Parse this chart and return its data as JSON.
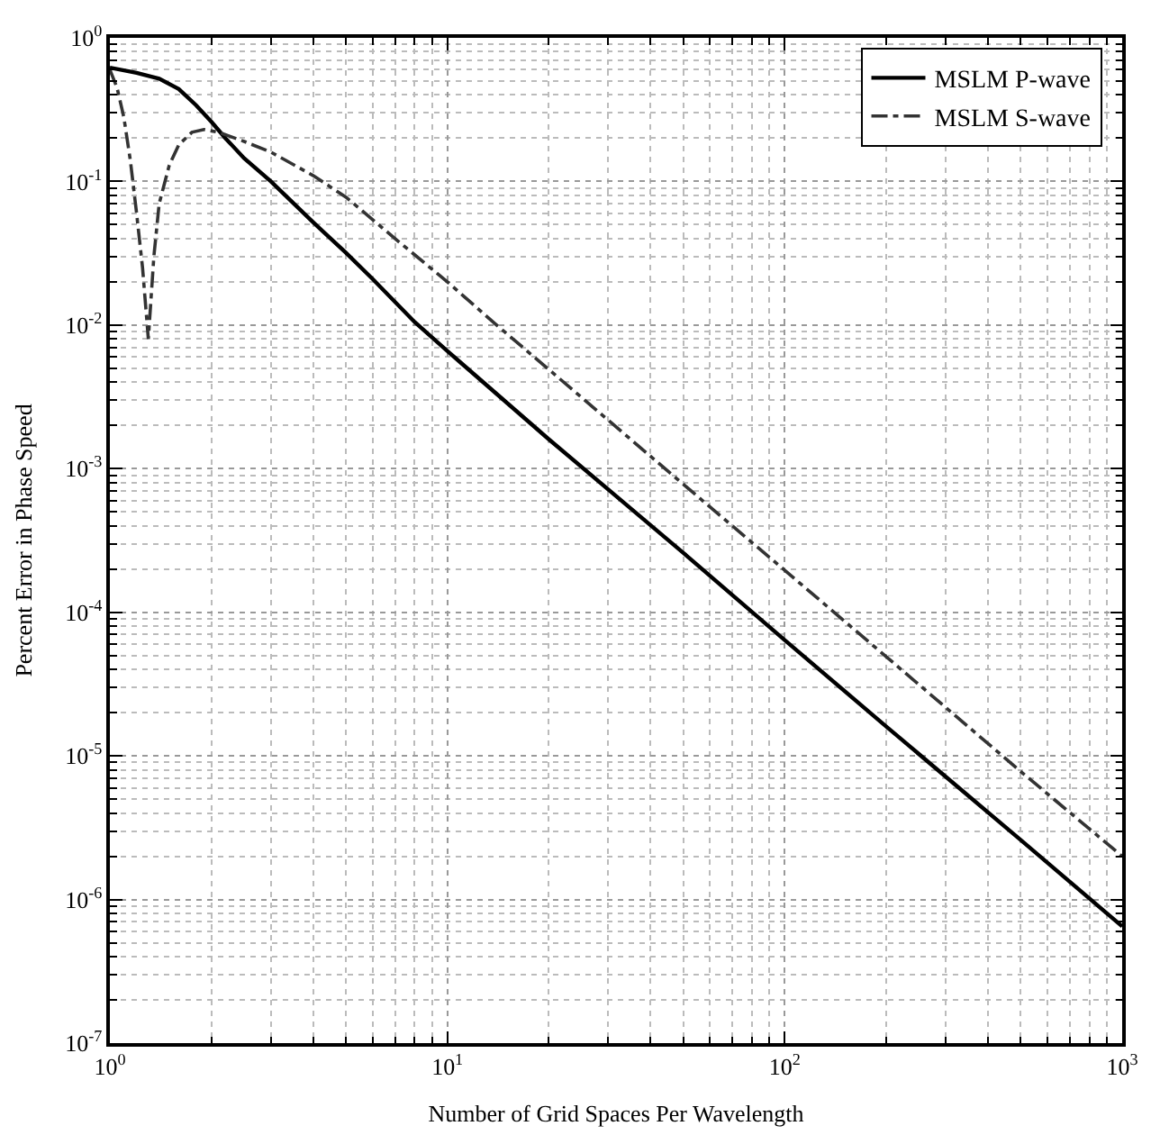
{
  "chart_data": {
    "type": "line",
    "xlabel": "Number of Grid Spaces Per Wavelength",
    "ylabel": "Percent Error in Phase Speed",
    "log": "xy",
    "grid": true,
    "legend": "top right",
    "xlim": [
      1,
      1000
    ],
    "xticks": [
      {
        "value": 1,
        "label": "10$^{0}$"
      },
      {
        "value": 10,
        "label": "10$^{1}$"
      },
      {
        "value": 100,
        "label": "10$^{2}$"
      },
      {
        "value": 1000,
        "label": "10$^{3}$"
      }
    ],
    "ylim": [
      1e-07,
      1
    ],
    "yticks": [
      {
        "value": 1e-07,
        "label": "10$^{-7}$"
      },
      {
        "value": 1e-06,
        "label": "10$^{-6}$"
      },
      {
        "value": 1e-05,
        "label": "10$^{-5}$"
      },
      {
        "value": 0.0001,
        "label": "10$^{-4}$"
      },
      {
        "value": 0.001,
        "label": "10$^{-3}$"
      },
      {
        "value": 0.01,
        "label": "10$^{-2}$"
      },
      {
        "value": 0.1,
        "label": "10$^{-1}$"
      },
      {
        "value": 1,
        "label": "10$^{0}$"
      }
    ],
    "series": [
      {
        "name": "MSLM P-wave",
        "color": "#000000",
        "line_style": "solid",
        "x": [
          1,
          1.2,
          1.4,
          1.6,
          1.8,
          2,
          2.2,
          2.5,
          3,
          4,
          5,
          6,
          8,
          10,
          20,
          50,
          100,
          200,
          500,
          1000
        ],
        "values": [
          0.62,
          0.57,
          0.52,
          0.44,
          0.34,
          0.26,
          0.2,
          0.145,
          0.1,
          0.052,
          0.032,
          0.021,
          0.0105,
          0.0066,
          0.0016,
          0.00026,
          6.4e-05,
          1.6e-05,
          2.6e-06,
          6.5e-07
        ]
      },
      {
        "name": "MSLM S-wave",
        "color": "#333333",
        "line_style": "dashed",
        "x": [
          1,
          1.05,
          1.1,
          1.15,
          1.2,
          1.25,
          1.3,
          1.35,
          1.4,
          1.5,
          1.6,
          1.75,
          1.9,
          2.1,
          2.5,
          3,
          4,
          5,
          7,
          10,
          14,
          20,
          50,
          100,
          200,
          500,
          1000
        ],
        "values": [
          0.6,
          0.45,
          0.28,
          0.14,
          0.06,
          0.025,
          0.008,
          0.03,
          0.07,
          0.13,
          0.18,
          0.22,
          0.23,
          0.22,
          0.19,
          0.16,
          0.11,
          0.078,
          0.04,
          0.02,
          0.01,
          0.0049,
          0.00078,
          0.000196,
          4.9e-05,
          7.8e-06,
          2e-06
        ]
      }
    ]
  }
}
